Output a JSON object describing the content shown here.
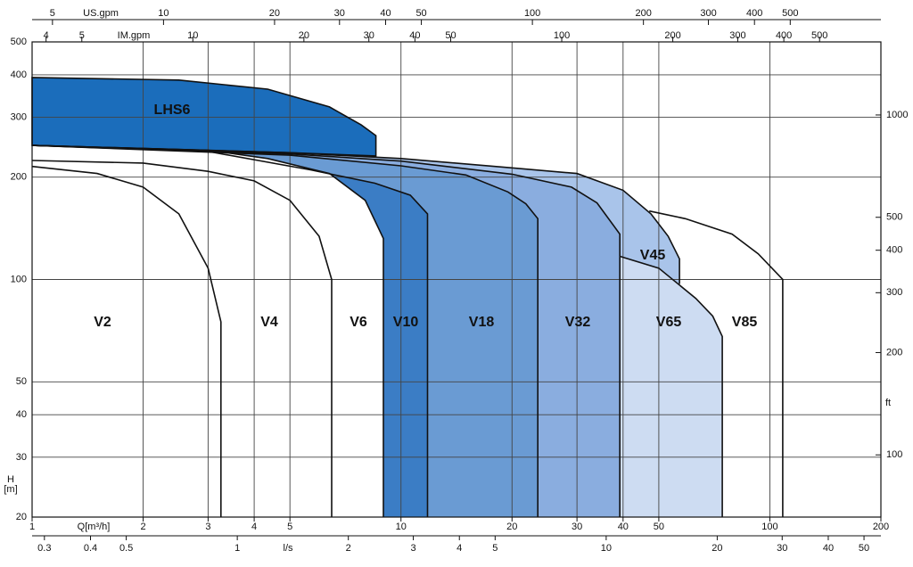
{
  "chart_data": {
    "type": "area",
    "log_x": true,
    "log_y": true,
    "grid": true,
    "xlabel": "Q[m³/h]",
    "ylabel": [
      "H",
      "[m]"
    ],
    "xlim": [
      1,
      200
    ],
    "xticks": [
      1,
      2,
      3,
      4,
      5,
      10,
      20,
      30,
      40,
      50,
      100,
      200
    ],
    "ylim": [
      20,
      500
    ],
    "yticks": [
      20,
      30,
      40,
      50,
      100,
      200,
      300,
      400,
      500
    ],
    "y2label": "ft",
    "y2lim": [
      65.62,
      1640.4
    ],
    "y2ticks": [
      100,
      200,
      300,
      400,
      500,
      1000
    ],
    "extra_x_axes": [
      {
        "label": "US.gpm",
        "side": "top",
        "lim": [
          4.403,
          880.6
        ],
        "ticks": [
          5,
          10,
          20,
          30,
          40,
          50,
          100,
          200,
          300,
          400,
          500
        ]
      },
      {
        "label": "IM.gpm",
        "side": "top",
        "lim": [
          3.666,
          733.2
        ],
        "ticks": [
          4,
          5,
          10,
          20,
          30,
          40,
          50,
          100,
          200,
          300,
          400,
          500
        ]
      },
      {
        "label": "l/s",
        "side": "bottom",
        "lim": [
          0.2778,
          55.56
        ],
        "ticks": [
          0.3,
          0.4,
          0.5,
          1,
          2,
          3,
          4,
          5,
          10,
          20,
          30,
          40,
          50
        ]
      }
    ],
    "series": [
      {
        "name": "V85",
        "color": "#ffffff",
        "x": [
          47.1,
          59,
          79,
          93,
          108.4,
          108.4
        ],
        "values": [
          159,
          151,
          136,
          119,
          100,
          20
        ]
      },
      {
        "name": "V45",
        "color": "#a9c4ea",
        "x": [
          1,
          5,
          10,
          20,
          30,
          40,
          47.6,
          53,
          56.9,
          56.9
        ],
        "values": [
          248,
          236,
          227,
          213,
          205,
          183,
          156,
          134,
          115,
          97
        ]
      },
      {
        "name": "V65",
        "color": "#cddcf2",
        "x": [
          39.2,
          50,
          63,
          70,
          74.3,
          74.3
        ],
        "values": [
          117,
          108,
          88,
          78,
          68,
          20
        ]
      },
      {
        "name": "V32",
        "color": "#8aaddf",
        "x": [
          1,
          5,
          10,
          20,
          29,
          34,
          39.2,
          39.2
        ],
        "values": [
          248,
          234,
          223,
          204,
          187,
          168,
          136,
          20
        ]
      },
      {
        "name": "V18",
        "color": "#6a9bd3",
        "x": [
          1,
          5,
          10,
          15,
          19.5,
          21.8,
          23.5,
          23.5
        ],
        "values": [
          248,
          232,
          216,
          203,
          181,
          167,
          151,
          20
        ]
      },
      {
        "name": "V10",
        "color": "#3b7dc5",
        "x": [
          1,
          3,
          5.7,
          8.5,
          10.6,
          11.8,
          11.8
        ],
        "values": [
          248,
          238,
          210,
          192,
          177,
          156,
          20
        ]
      },
      {
        "name": "V6",
        "color": "#ffffff",
        "x": [
          1,
          3,
          4.35,
          6.4,
          8,
          8.96,
          8.96
        ],
        "values": [
          248,
          240,
          227,
          205,
          171,
          132,
          20
        ]
      },
      {
        "name": "V4",
        "color": "#ffffff",
        "x": [
          1,
          2,
          3,
          4,
          5,
          6,
          6.49,
          6.49
        ],
        "values": [
          224,
          220,
          208,
          195,
          171,
          134,
          100,
          20
        ]
      },
      {
        "name": "V2",
        "color": "#ffffff",
        "x": [
          1,
          1.5,
          2,
          2.5,
          3,
          3.25,
          3.25
        ],
        "values": [
          215,
          205,
          187,
          156,
          108,
          75,
          20
        ]
      },
      {
        "name": "LHS6",
        "color": "#1b6dbb",
        "closed": true,
        "x": [
          1,
          2.5,
          4.35,
          6.4,
          7.8,
          8.55,
          8.55,
          5,
          3,
          1
        ],
        "values": [
          393,
          386,
          363,
          322,
          285,
          265,
          231,
          236,
          240,
          248
        ]
      }
    ]
  }
}
